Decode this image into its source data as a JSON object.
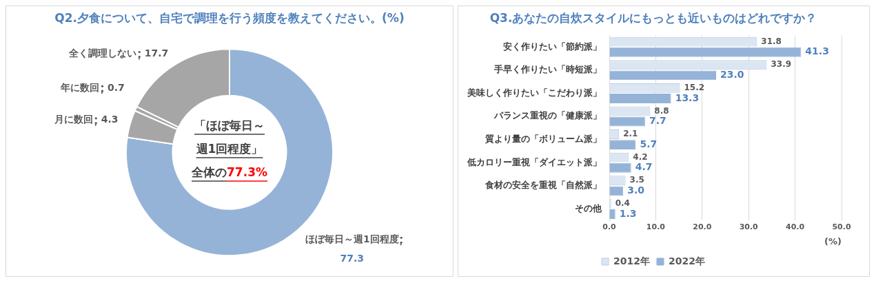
{
  "chart_data": [
    {
      "type": "donut",
      "title": "Q2.夕食について、自宅で調理を行う頻度を教えてください。(%)",
      "categories": [
        "ほぼ毎日～週1回程度",
        "月に数回",
        "年に数回",
        "全く調理しない"
      ],
      "values": [
        77.3,
        4.3,
        0.7,
        17.7
      ],
      "colors": [
        "#95b3d7",
        "#a6a6a6",
        "#a6a6a6",
        "#a6a6a6"
      ],
      "data_labels": true,
      "legend": false,
      "annotations": [
        "「ほぼ毎日～",
        "週1回程度」",
        "全体の",
        "77.3%"
      ]
    },
    {
      "type": "bar",
      "orientation": "horizontal",
      "title": "Q3.あなたの自炊スタイルにもっとも近いものはどれですか？",
      "categories": [
        "安く作りたい「節約派」",
        "手早く作りたい「時短派」",
        "美味しく作りたい「こだわり派」",
        "バランス重視の「健康派」",
        "質より量の「ボリューム派」",
        "低カロリー重視「ダイエット派」",
        "食材の安全を重視「自然派」",
        "その他"
      ],
      "series": [
        {
          "name": "2012年",
          "color": "#dce6f2",
          "values": [
            31.8,
            33.9,
            15.2,
            8.8,
            2.1,
            4.2,
            3.5,
            0.4
          ],
          "value_labels": [
            "31.8",
            "33.9",
            "15.2",
            "8.8",
            "2.1",
            "4.2",
            "3.5",
            "0.4"
          ]
        },
        {
          "name": "2022年",
          "color": "#95b3d7",
          "values": [
            41.3,
            23.0,
            13.3,
            7.7,
            5.7,
            4.7,
            3.0,
            1.3
          ],
          "value_labels": [
            "41.3",
            "23.0",
            "13.3",
            "7.7",
            "5.7",
            "4.7",
            "3.0",
            "1.3"
          ]
        }
      ],
      "xlim": [
        0,
        50
      ],
      "xticks": [
        {
          "value": 0,
          "label": "0.0"
        },
        {
          "value": 10,
          "label": "10.0"
        },
        {
          "value": 20,
          "label": "20.0"
        },
        {
          "value": 30,
          "label": "30.0"
        },
        {
          "value": 40,
          "label": "40.0"
        },
        {
          "value": 50,
          "label": "50.0"
        }
      ],
      "xlabel": "(%)",
      "grid": "x",
      "legend": "bottom"
    }
  ]
}
